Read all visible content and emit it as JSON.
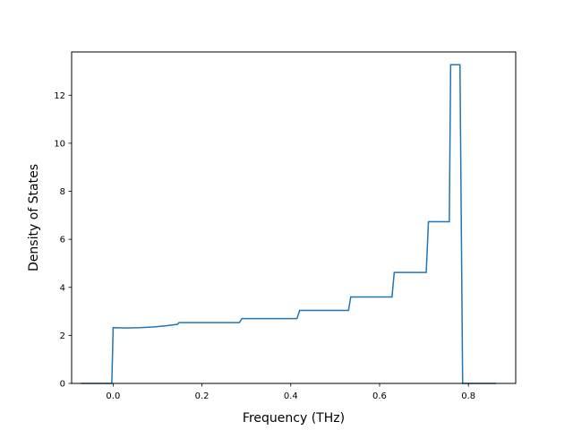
{
  "chart_data": {
    "type": "line",
    "xlabel": "Frequency (THz)",
    "ylabel": "Density of States",
    "xlim": [
      -0.0935,
      0.9065
    ],
    "ylim": [
      0,
      13.8
    ],
    "x_ticks": [
      0.0,
      0.2,
      0.4,
      0.6,
      0.8
    ],
    "x_tick_labels": [
      "0.0",
      "0.2",
      "0.4",
      "0.6",
      "0.8"
    ],
    "y_ticks": [
      0,
      2,
      4,
      6,
      8,
      10,
      12
    ],
    "y_tick_labels": [
      "0",
      "2",
      "4",
      "6",
      "8",
      "10",
      "12"
    ],
    "grid": false,
    "series": [
      {
        "color": "#1f77b4",
        "points": [
          [
            -0.072,
            0
          ],
          [
            -0.003,
            0
          ],
          [
            0.0,
            2.32
          ],
          [
            0.03,
            2.31
          ],
          [
            0.06,
            2.32
          ],
          [
            0.09,
            2.35
          ],
          [
            0.12,
            2.4
          ],
          [
            0.145,
            2.46
          ],
          [
            0.148,
            2.53
          ],
          [
            0.284,
            2.53
          ],
          [
            0.29,
            2.7
          ],
          [
            0.414,
            2.7
          ],
          [
            0.42,
            3.04
          ],
          [
            0.53,
            3.04
          ],
          [
            0.535,
            3.6
          ],
          [
            0.628,
            3.6
          ],
          [
            0.633,
            4.62
          ],
          [
            0.705,
            4.62
          ],
          [
            0.71,
            6.73
          ],
          [
            0.757,
            6.73
          ],
          [
            0.76,
            13.27
          ],
          [
            0.781,
            13.27
          ],
          [
            0.787,
            0
          ],
          [
            0.862,
            0
          ]
        ]
      }
    ]
  }
}
